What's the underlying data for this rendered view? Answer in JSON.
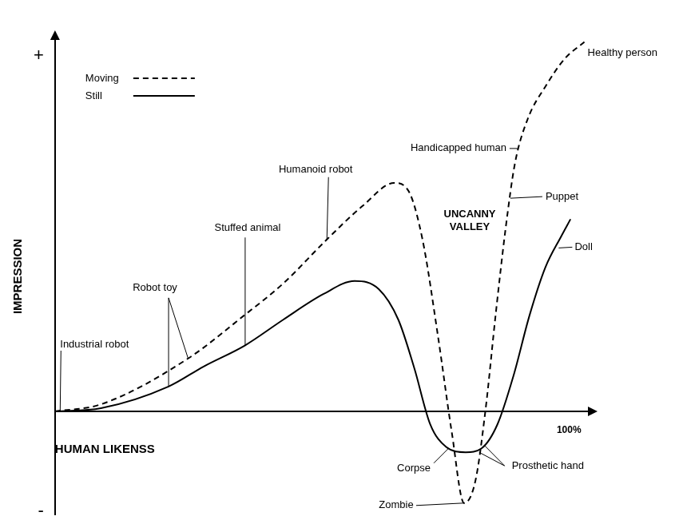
{
  "chart_data": {
    "type": "line",
    "x_label": "HUMAN LIKENSS",
    "y_label": "IMPRESSION",
    "xlim": [
      0,
      104
    ],
    "xticks": [
      {
        "value": 100,
        "label": "100%"
      }
    ],
    "ylim": [
      -29,
      105
    ],
    "yticks": [
      {
        "value": -28,
        "label": "-"
      },
      {
        "value": 100,
        "label": "+"
      }
    ],
    "grid": false,
    "legend": "upper left",
    "series": [
      {
        "name": "Moving",
        "color": "#000000",
        "line_style": "dashed",
        "x": [
          0,
          8.95,
          25.9,
          36.7,
          44.4,
          52.9,
          59.9,
          66.0,
          68.8,
          71.5,
          74.5,
          77.2,
          79.6,
          81.8,
          83.8,
          85.8,
          87.7,
          89.5,
          92.0,
          95.4,
          99.2,
          103.0
        ],
        "values": [
          0,
          2.0,
          14.9,
          26.9,
          36.0,
          48.4,
          57.9,
          64.3,
          62.0,
          48.4,
          21.3,
          -5.9,
          -25.8,
          -19.5,
          0.9,
          28.1,
          51.8,
          69.9,
          82.4,
          91.4,
          99.3,
          104.0
        ]
      },
      {
        "name": "Still",
        "color": "#000000",
        "line_style": "solid",
        "x": [
          0,
          8.95,
          22.1,
          29.0,
          37.0,
          44.4,
          52.2,
          58.3,
          63.0,
          66.8,
          69.9,
          73.0,
          76.1,
          79.9,
          83.0,
          86.1,
          89.2,
          92.3,
          95.4,
          98.5,
          100.3
        ],
        "values": [
          0,
          0.9,
          7.0,
          12.7,
          18.6,
          25.8,
          33.0,
          36.7,
          34.4,
          25.8,
          12.2,
          -3.6,
          -10.0,
          -11.5,
          -10.4,
          -3.6,
          10.0,
          26.9,
          40.5,
          49.3,
          54.1
        ]
      }
    ],
    "annotations": [
      {
        "text": "Industrial robot",
        "points": [
          [
            1,
            0
          ]
        ]
      },
      {
        "text": "Robot toy",
        "points": [
          [
            22.1,
            7.0
          ],
          [
            25.9,
            14.9
          ]
        ]
      },
      {
        "text": "Stuffed animal",
        "points": [
          [
            37.0,
            18.6
          ]
        ]
      },
      {
        "text": "Humanoid robot",
        "points": [
          [
            52.9,
            48.4
          ]
        ]
      },
      {
        "text": "Handicapped human",
        "points": [
          [
            90.0,
            74.0
          ]
        ]
      },
      {
        "text": "Puppet",
        "points": [
          [
            88.6,
            60.0
          ]
        ]
      },
      {
        "text": "Healthy person",
        "points": [
          [
            103.0,
            104.0
          ]
        ]
      },
      {
        "text": "Doll",
        "points": [
          [
            98.0,
            46.0
          ]
        ]
      },
      {
        "text": "UNCANNY VALLEY",
        "points": [
          [
            79.6,
            -25.8
          ]
        ]
      },
      {
        "text": "Corpse",
        "points": [
          [
            76.5,
            -10.5
          ]
        ]
      },
      {
        "text": "Zombie",
        "points": [
          [
            79.6,
            -25.8
          ]
        ]
      },
      {
        "text": "Prosthetic hand",
        "points": [
          [
            82.5,
            -11.5
          ],
          [
            83.5,
            -9.5
          ]
        ]
      }
    ]
  }
}
